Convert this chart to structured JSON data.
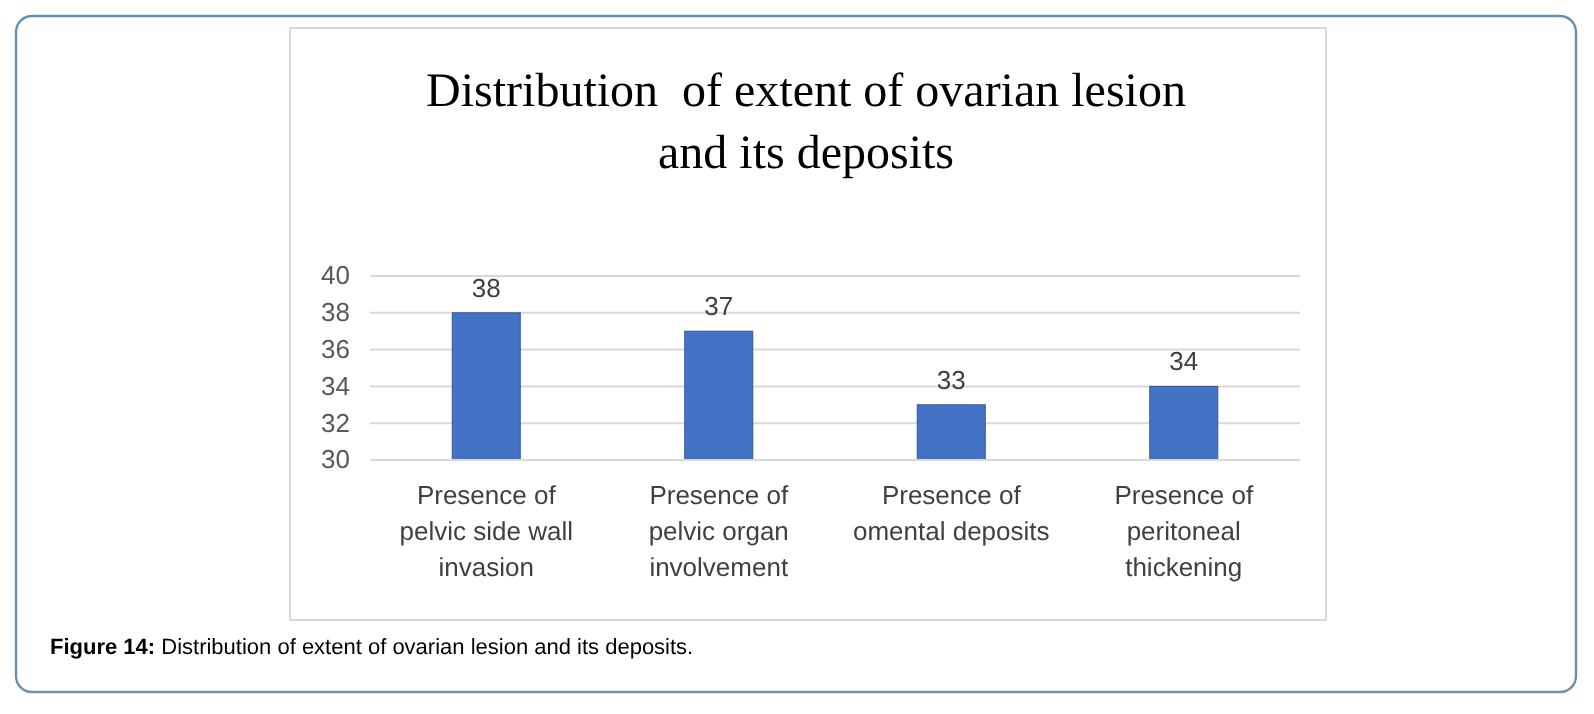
{
  "chart_data": {
    "type": "bar",
    "title": "Distribution  of extent of ovarian lesion and its deposits",
    "categories": [
      "Presence of pelvic side wall invasion",
      "Presence of pelvic organ involvement",
      "Presence of omental deposits",
      "Presence of peritoneal thickening"
    ],
    "values": [
      38,
      37,
      33,
      34
    ],
    "color": "#4472c4",
    "ylim": [
      30,
      40
    ],
    "yticks": [
      30,
      32,
      34,
      36,
      38,
      40
    ],
    "grid": "y",
    "data_labels": true,
    "annotations": [
      "Figure 14: Distribution of extent of ovarian lesion and its deposits."
    ]
  }
}
